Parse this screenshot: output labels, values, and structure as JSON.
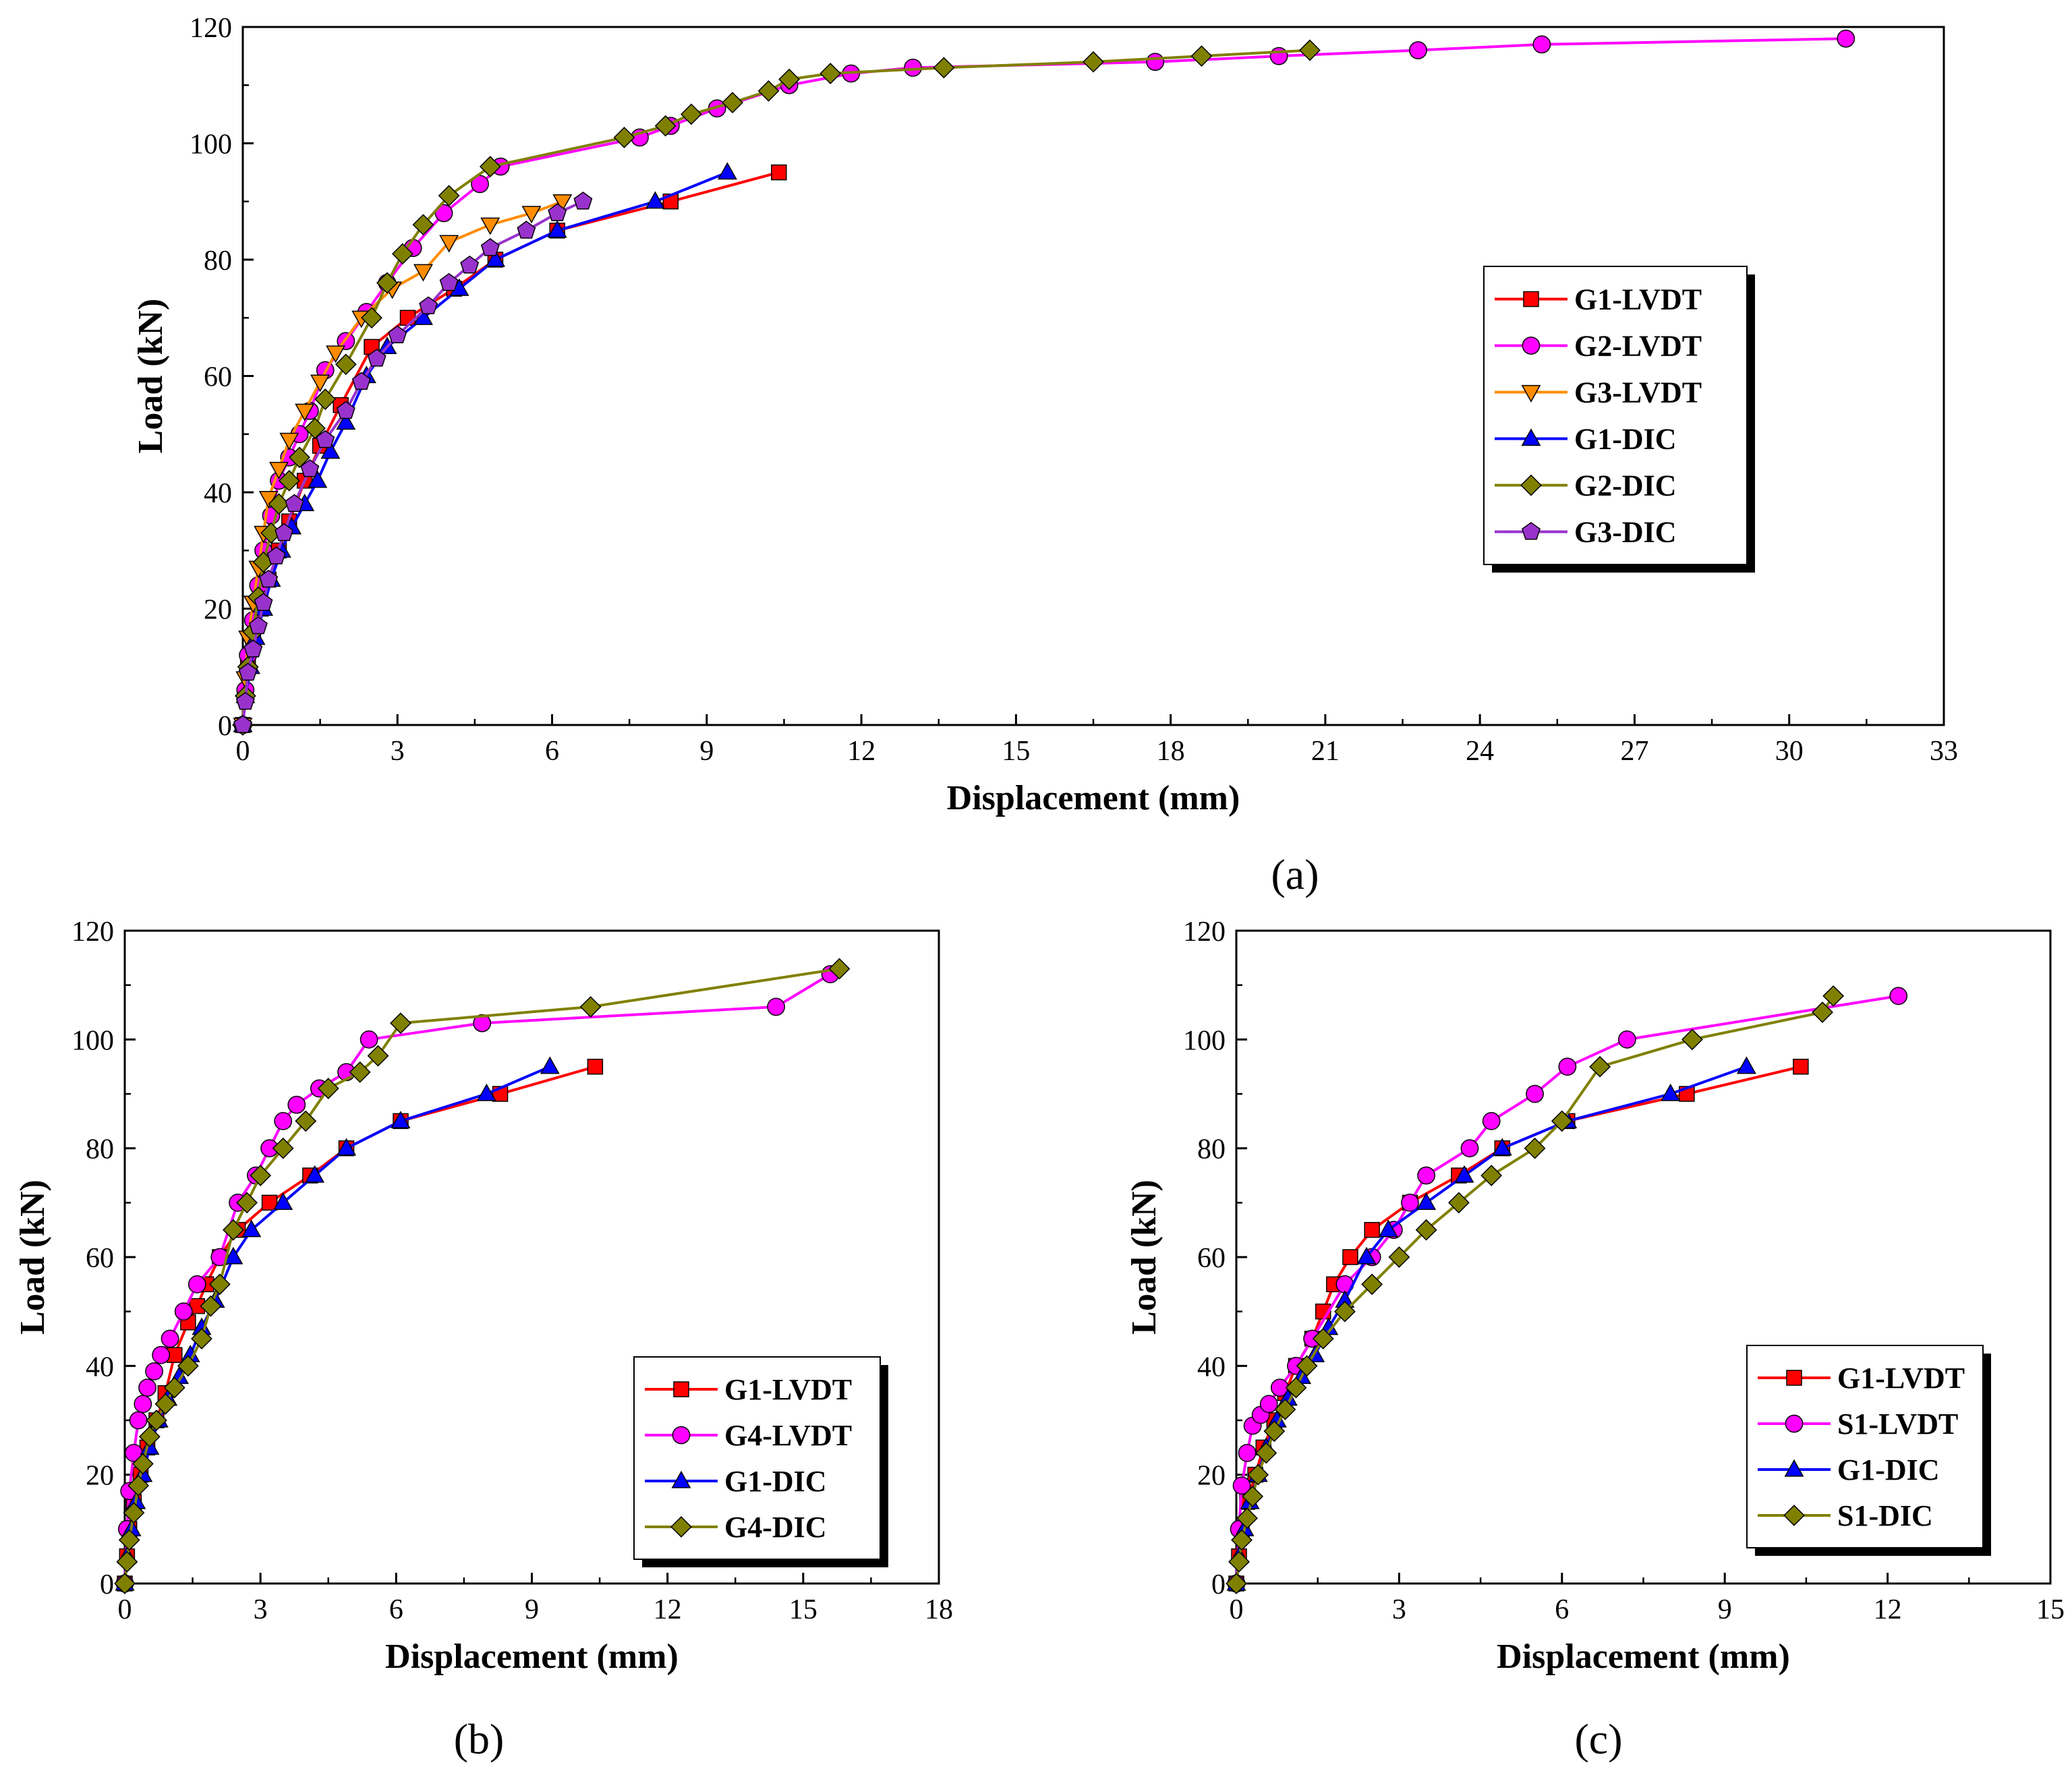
{
  "figure": {
    "panel_labels": [
      "(a)",
      "(b)",
      "(c)"
    ]
  },
  "chart_data": [
    {
      "id": "a",
      "type": "line",
      "title": "",
      "panel_label": "(a)",
      "xlabel": "Displacement (mm)",
      "ylabel": "Load (kN)",
      "xlim": [
        0,
        33
      ],
      "ylim": [
        0,
        120
      ],
      "xticks": [
        0,
        3,
        6,
        9,
        12,
        15,
        18,
        21,
        24,
        27,
        30,
        33
      ],
      "yticks": [
        0,
        20,
        40,
        60,
        80,
        100,
        120
      ],
      "grid": false,
      "legend_position": "right",
      "series": [
        {
          "name": "G1-LVDT",
          "color": "#ff0000",
          "marker": "square",
          "x": [
            0,
            0.05,
            0.1,
            0.2,
            0.35,
            0.5,
            0.7,
            0.9,
            1.2,
            1.5,
            1.9,
            2.5,
            3.2,
            4.1,
            4.9,
            6.1,
            8.3,
            10.4
          ],
          "y": [
            0,
            5,
            10,
            15,
            20,
            25,
            30,
            35,
            42,
            48,
            55,
            65,
            70,
            75,
            80,
            85,
            90,
            95
          ]
        },
        {
          "name": "G2-LVDT",
          "color": "#ff00ff",
          "marker": "circle",
          "x": [
            0,
            0.05,
            0.1,
            0.2,
            0.3,
            0.4,
            0.55,
            0.7,
            0.9,
            1.1,
            1.3,
            1.6,
            2.0,
            2.4,
            2.8,
            3.3,
            3.9,
            4.6,
            5.0,
            7.7,
            8.3,
            9.2,
            10.6,
            11.8,
            13.0,
            17.7,
            20.1,
            22.8,
            25.2,
            31.1
          ],
          "y": [
            0,
            6,
            12,
            18,
            24,
            30,
            36,
            42,
            46,
            50,
            54,
            61,
            66,
            71,
            76,
            82,
            88,
            93,
            96,
            101,
            103,
            106,
            110,
            112,
            113,
            114,
            115,
            116,
            117,
            118
          ]
        },
        {
          "name": "G3-LVDT",
          "color": "#ff8c00",
          "marker": "triangle-down",
          "x": [
            0,
            0.05,
            0.1,
            0.2,
            0.3,
            0.4,
            0.5,
            0.7,
            0.9,
            1.2,
            1.5,
            1.8,
            2.3,
            2.9,
            3.5,
            4.0,
            4.8,
            5.6,
            6.2
          ],
          "y": [
            0,
            8,
            15,
            21,
            27,
            33,
            39,
            44,
            49,
            54,
            59,
            64,
            70,
            75,
            78,
            83,
            86,
            88,
            90
          ]
        },
        {
          "name": "G1-DIC",
          "color": "#0000ff",
          "marker": "triangle-up",
          "x": [
            0,
            0.05,
            0.15,
            0.25,
            0.4,
            0.55,
            0.75,
            0.95,
            1.2,
            1.45,
            1.7,
            2.0,
            2.4,
            2.8,
            3.5,
            4.2,
            4.9,
            6.1,
            8.0,
            9.4
          ],
          "y": [
            0,
            5,
            10,
            15,
            20,
            25,
            30,
            34,
            38,
            42,
            47,
            52,
            60,
            65,
            70,
            75,
            80,
            85,
            90,
            95
          ]
        },
        {
          "name": "G2-DIC",
          "color": "#808000",
          "marker": "diamond",
          "x": [
            0,
            0.05,
            0.1,
            0.2,
            0.3,
            0.4,
            0.55,
            0.7,
            0.9,
            1.1,
            1.4,
            1.6,
            2.0,
            2.5,
            2.8,
            3.1,
            3.5,
            4.0,
            4.8,
            7.4,
            8.2,
            8.7,
            9.5,
            10.2,
            10.6,
            11.4,
            13.6,
            16.5,
            18.6,
            20.7
          ],
          "y": [
            0,
            5,
            10,
            16,
            22,
            28,
            33,
            38,
            42,
            46,
            51,
            56,
            62,
            70,
            76,
            81,
            86,
            91,
            96,
            101,
            103,
            105,
            107,
            109,
            111,
            112,
            113,
            114,
            115,
            116
          ]
        },
        {
          "name": "G3-DIC",
          "color": "#9932cc",
          "marker": "pentagon",
          "x": [
            0,
            0.05,
            0.1,
            0.2,
            0.3,
            0.4,
            0.5,
            0.65,
            0.8,
            1.0,
            1.3,
            1.6,
            2.0,
            2.3,
            2.6,
            3.0,
            3.6,
            4.0,
            4.4,
            4.8,
            5.5,
            6.1,
            6.6
          ],
          "y": [
            0,
            4,
            9,
            13,
            17,
            21,
            25,
            29,
            33,
            38,
            44,
            49,
            54,
            59,
            63,
            67,
            72,
            76,
            79,
            82,
            85,
            88,
            90
          ]
        }
      ]
    },
    {
      "id": "b",
      "type": "line",
      "title": "",
      "panel_label": "(b)",
      "xlabel": "Displacement (mm)",
      "ylabel": "Load (kN)",
      "xlim": [
        0,
        18
      ],
      "ylim": [
        0,
        120
      ],
      "xticks": [
        0,
        3,
        6,
        9,
        12,
        15,
        18
      ],
      "yticks": [
        0,
        20,
        40,
        60,
        80,
        100,
        120
      ],
      "grid": false,
      "legend_position": "bottom-right",
      "series": [
        {
          "name": "G1-LVDT",
          "color": "#ff0000",
          "marker": "square",
          "x": [
            0,
            0.05,
            0.1,
            0.2,
            0.35,
            0.5,
            0.7,
            0.9,
            1.1,
            1.4,
            1.6,
            1.8,
            2.1,
            2.5,
            3.2,
            4.1,
            4.9,
            6.1,
            8.3,
            10.4
          ],
          "y": [
            0,
            5,
            10,
            15,
            20,
            25,
            30,
            35,
            42,
            48,
            51,
            55,
            60,
            65,
            70,
            75,
            80,
            85,
            90,
            95
          ]
        },
        {
          "name": "G4-LVDT",
          "color": "#ff00ff",
          "marker": "circle",
          "x": [
            0,
            0.05,
            0.1,
            0.2,
            0.3,
            0.4,
            0.5,
            0.65,
            0.8,
            1.0,
            1.3,
            1.6,
            2.1,
            2.5,
            2.9,
            3.2,
            3.5,
            3.8,
            4.3,
            4.9,
            5.4,
            7.9,
            14.4,
            15.6
          ],
          "y": [
            0,
            10,
            17,
            24,
            30,
            33,
            36,
            39,
            42,
            45,
            50,
            55,
            60,
            70,
            75,
            80,
            85,
            88,
            91,
            94,
            100,
            103,
            106,
            112
          ]
        },
        {
          "name": "G1-DIC",
          "color": "#0000ff",
          "marker": "triangle-up",
          "x": [
            0,
            0.05,
            0.15,
            0.25,
            0.4,
            0.55,
            0.75,
            0.95,
            1.2,
            1.45,
            1.7,
            2.0,
            2.4,
            2.8,
            3.5,
            4.2,
            4.9,
            6.1,
            8.0,
            9.4
          ],
          "y": [
            0,
            5,
            10,
            15,
            20,
            25,
            30,
            34,
            38,
            42,
            47,
            52,
            60,
            65,
            70,
            75,
            80,
            85,
            90,
            95
          ]
        },
        {
          "name": "G4-DIC",
          "color": "#808000",
          "marker": "diamond",
          "x": [
            0,
            0.05,
            0.1,
            0.2,
            0.3,
            0.4,
            0.55,
            0.7,
            0.9,
            1.1,
            1.4,
            1.7,
            1.9,
            2.1,
            2.4,
            2.7,
            3.0,
            3.5,
            4.0,
            4.5,
            5.2,
            5.6,
            6.1,
            10.3,
            15.8
          ],
          "y": [
            0,
            4,
            8,
            13,
            18,
            22,
            27,
            30,
            33,
            36,
            40,
            45,
            51,
            55,
            65,
            70,
            75,
            80,
            85,
            91,
            94,
            97,
            103,
            106,
            113
          ]
        }
      ]
    },
    {
      "id": "c",
      "type": "line",
      "title": "",
      "panel_label": "(c)",
      "xlabel": "Displacement (mm)",
      "ylabel": "Load (kN)",
      "xlim": [
        0,
        15
      ],
      "ylim": [
        0,
        120
      ],
      "xticks": [
        0,
        3,
        6,
        9,
        12,
        15
      ],
      "yticks": [
        0,
        20,
        40,
        60,
        80,
        100,
        120
      ],
      "grid": false,
      "legend_position": "bottom-right",
      "series": [
        {
          "name": "G1-LVDT",
          "color": "#ff0000",
          "marker": "square",
          "x": [
            0,
            0.05,
            0.1,
            0.2,
            0.35,
            0.5,
            0.7,
            0.9,
            1.1,
            1.4,
            1.6,
            1.8,
            2.1,
            2.5,
            3.2,
            4.1,
            4.9,
            6.1,
            8.3,
            10.4
          ],
          "y": [
            0,
            5,
            10,
            15,
            20,
            25,
            30,
            35,
            40,
            45,
            50,
            55,
            60,
            65,
            70,
            75,
            80,
            85,
            90,
            95
          ]
        },
        {
          "name": "S1-LVDT",
          "color": "#ff00ff",
          "marker": "circle",
          "x": [
            0,
            0.05,
            0.1,
            0.2,
            0.3,
            0.45,
            0.6,
            0.8,
            1.1,
            1.4,
            2.0,
            2.5,
            2.9,
            3.2,
            3.5,
            4.3,
            4.7,
            5.5,
            6.1,
            7.2,
            12.2
          ],
          "y": [
            0,
            10,
            18,
            24,
            29,
            31,
            33,
            36,
            40,
            45,
            55,
            60,
            65,
            70,
            75,
            80,
            85,
            90,
            95,
            100,
            108
          ]
        },
        {
          "name": "G1-DIC",
          "color": "#0000ff",
          "marker": "triangle-up",
          "x": [
            0,
            0.05,
            0.15,
            0.25,
            0.4,
            0.55,
            0.75,
            0.95,
            1.2,
            1.45,
            1.7,
            2.0,
            2.4,
            2.8,
            3.5,
            4.2,
            4.9,
            6.1,
            8.0,
            9.4
          ],
          "y": [
            0,
            5,
            10,
            15,
            20,
            25,
            30,
            34,
            38,
            42,
            47,
            52,
            60,
            65,
            70,
            75,
            80,
            85,
            90,
            95
          ]
        },
        {
          "name": "S1-DIC",
          "color": "#808000",
          "marker": "diamond",
          "x": [
            0,
            0.05,
            0.1,
            0.2,
            0.3,
            0.4,
            0.55,
            0.7,
            0.9,
            1.1,
            1.3,
            1.6,
            2.0,
            2.5,
            3.0,
            3.5,
            4.1,
            4.7,
            5.5,
            6.0,
            6.7,
            8.4,
            10.8,
            11.0
          ],
          "y": [
            0,
            4,
            8,
            12,
            16,
            20,
            24,
            28,
            32,
            36,
            40,
            45,
            50,
            55,
            60,
            65,
            70,
            75,
            80,
            85,
            95,
            100,
            105,
            108
          ]
        }
      ]
    }
  ]
}
